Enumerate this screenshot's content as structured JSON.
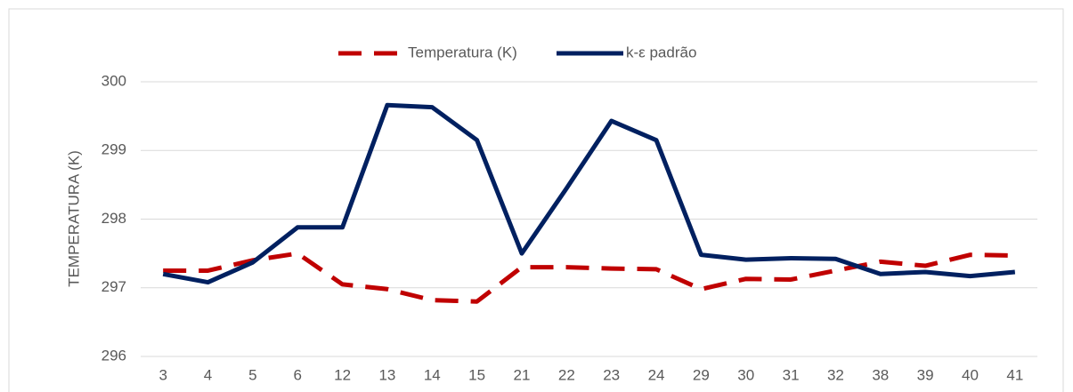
{
  "chart_data": {
    "type": "line",
    "ylabel": "TEMPERATURA (K)",
    "categories": [
      "3",
      "4",
      "5",
      "6",
      "12",
      "13",
      "14",
      "15",
      "21",
      "22",
      "23",
      "24",
      "29",
      "30",
      "31",
      "32",
      "38",
      "39",
      "40",
      "41"
    ],
    "series": [
      {
        "name": "Temperatura (K)",
        "color": "#c00000",
        "dashed": true,
        "values": [
          297.25,
          297.25,
          297.4,
          297.5,
          297.05,
          296.98,
          296.82,
          296.8,
          297.3,
          297.3,
          297.28,
          297.27,
          296.98,
          297.13,
          297.12,
          297.25,
          297.38,
          297.32,
          297.48,
          297.47
        ]
      },
      {
        "name": "k-ε padrão",
        "color": "#002060",
        "dashed": false,
        "values": [
          297.2,
          297.08,
          297.37,
          297.88,
          297.88,
          299.66,
          299.63,
          299.15,
          297.5,
          298.45,
          299.43,
          299.15,
          297.48,
          297.41,
          297.43,
          297.42,
          297.2,
          297.23,
          297.17,
          297.23
        ]
      }
    ],
    "ylim": [
      296,
      300
    ],
    "yticks": [
      296,
      297,
      298,
      299,
      300
    ],
    "grid": true,
    "legend": "top"
  }
}
